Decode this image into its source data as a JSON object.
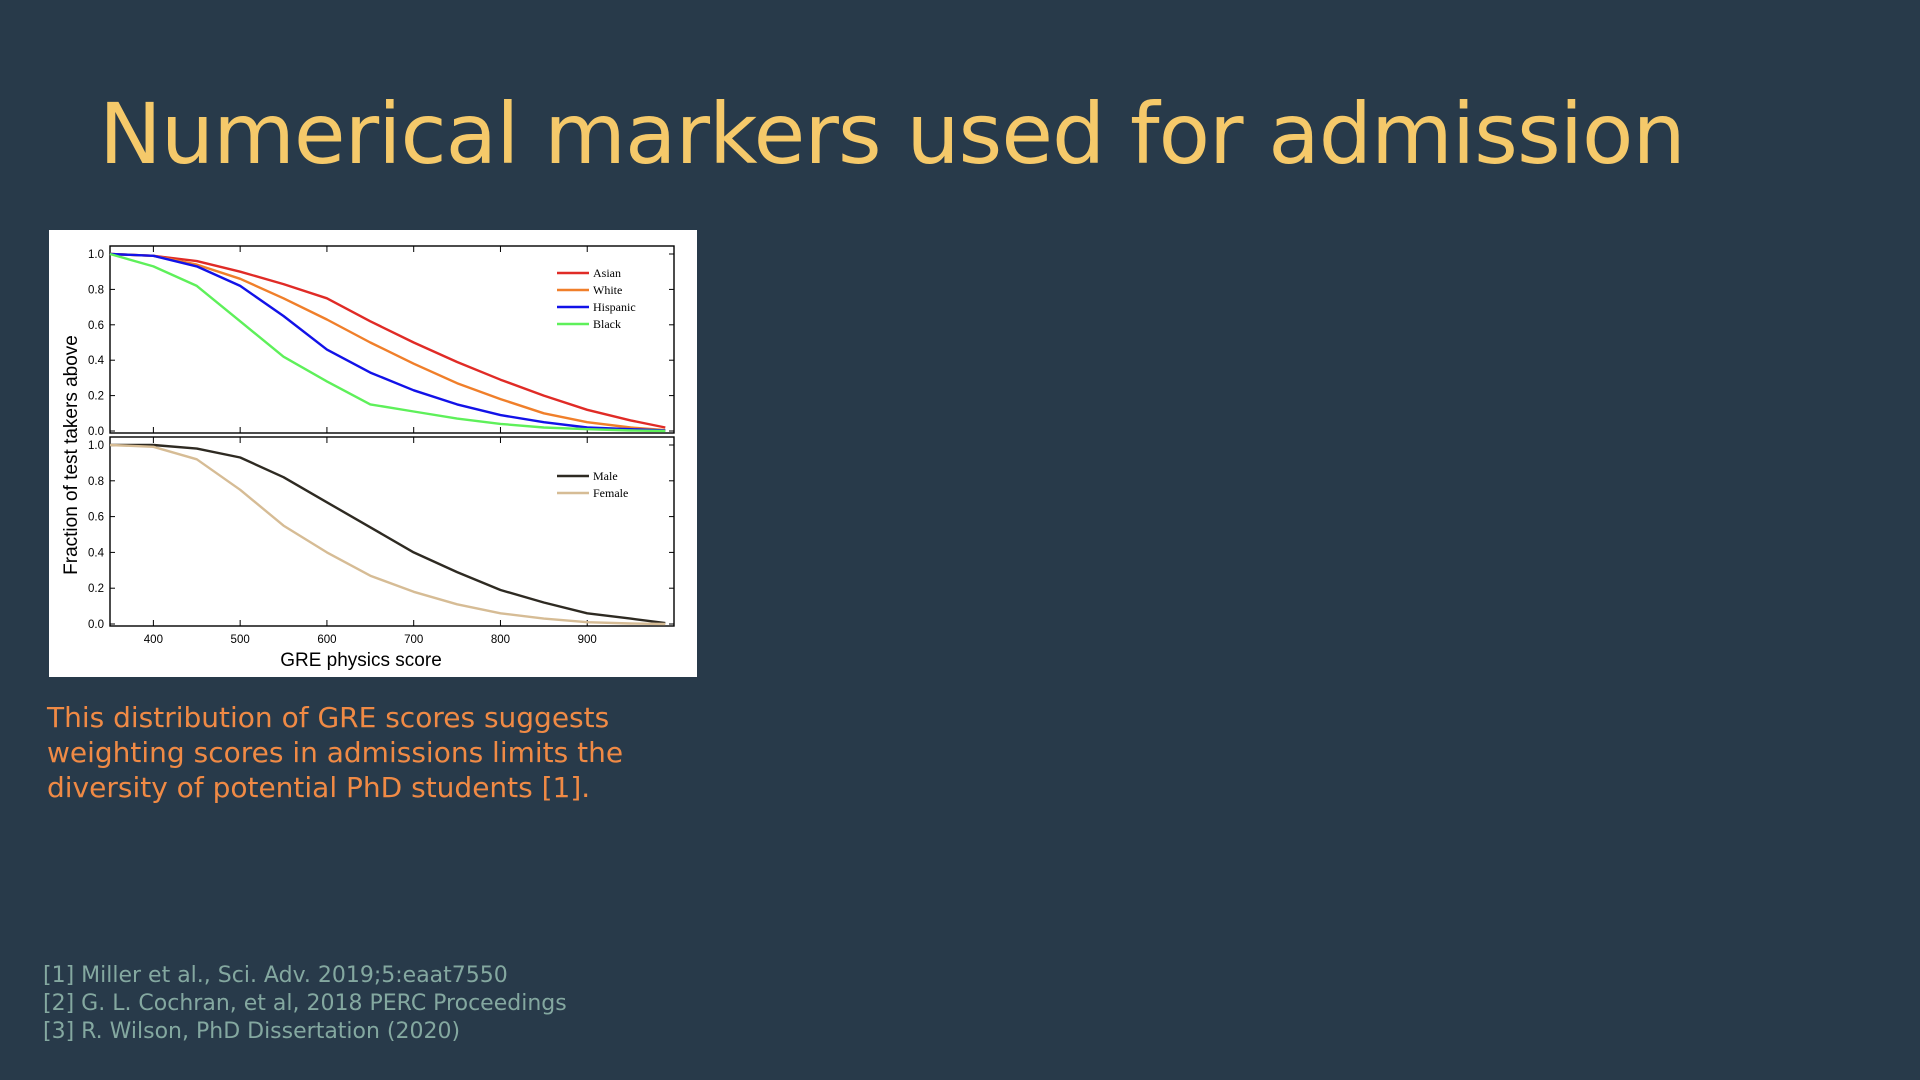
{
  "slide": {
    "title": "Numerical markers used for admission",
    "caption": [
      "This distribution of GRE scores suggests",
      "weighting scores in admissions limits the",
      "diversity of potential PhD students [1]."
    ],
    "references": [
      "[1] Miller et al., Sci. Adv. 2019;5:eaat7550",
      "[2] G. L. Cochran, et al, 2018 PERC Proceedings",
      "[3] R. Wilson, PhD Dissertation (2020)"
    ]
  },
  "chart_data": {
    "type": "line",
    "xlabel": "GRE physics score",
    "ylabel": "Fraction of test takers above",
    "xlim": [
      350,
      1000
    ],
    "ylim": [
      0,
      1
    ],
    "xticks": [
      400,
      500,
      600,
      700,
      800,
      900
    ],
    "yticks": [
      "0.0",
      "0.2",
      "0.4",
      "0.6",
      "0.8",
      "1.0"
    ],
    "x": [
      350,
      400,
      450,
      500,
      550,
      600,
      650,
      700,
      750,
      800,
      850,
      900,
      950,
      990
    ],
    "legend_position": "top-right",
    "panels": [
      {
        "series": [
          {
            "name": "Asian",
            "color": "#e02b26",
            "values": [
              1.0,
              0.99,
              0.96,
              0.9,
              0.83,
              0.75,
              0.62,
              0.5,
              0.39,
              0.29,
              0.2,
              0.12,
              0.06,
              0.02
            ]
          },
          {
            "name": "White",
            "color": "#f07f2a",
            "values": [
              1.0,
              0.99,
              0.94,
              0.86,
              0.75,
              0.63,
              0.5,
              0.38,
              0.27,
              0.18,
              0.1,
              0.05,
              0.02,
              0.005
            ]
          },
          {
            "name": "Hispanic",
            "color": "#1212e8",
            "values": [
              1.0,
              0.99,
              0.93,
              0.82,
              0.65,
              0.46,
              0.33,
              0.23,
              0.15,
              0.09,
              0.05,
              0.02,
              0.01,
              0.003
            ]
          },
          {
            "name": "Black",
            "color": "#5ef05a",
            "values": [
              1.0,
              0.93,
              0.82,
              0.62,
              0.42,
              0.28,
              0.15,
              0.11,
              0.07,
              0.04,
              0.02,
              0.01,
              0.003,
              0.0
            ]
          }
        ]
      },
      {
        "series": [
          {
            "name": "Male",
            "color": "#2e2a22",
            "values": [
              1.0,
              1.0,
              0.98,
              0.93,
              0.82,
              0.68,
              0.54,
              0.4,
              0.29,
              0.19,
              0.12,
              0.06,
              0.03,
              0.005
            ]
          },
          {
            "name": "Female",
            "color": "#d6bc95",
            "values": [
              1.0,
              0.99,
              0.92,
              0.75,
              0.55,
              0.4,
              0.27,
              0.18,
              0.11,
              0.06,
              0.03,
              0.01,
              0.003,
              0.0
            ]
          }
        ]
      }
    ]
  }
}
